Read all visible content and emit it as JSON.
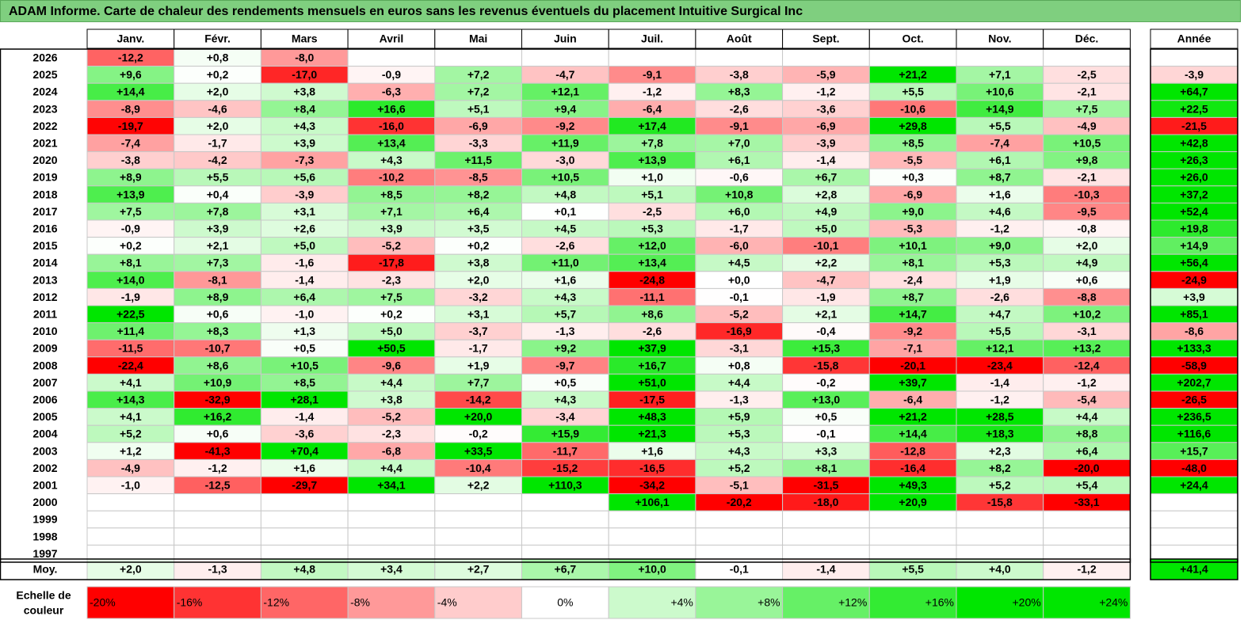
{
  "title": "ADAM Informe. Carte de chaleur des rendements mensuels en euros sans les revenus éventuels du placement Intuitive Surgical Inc",
  "chart_data": {
    "type": "heatmap",
    "months": [
      "Janv.",
      "Févr.",
      "Mars",
      "Avril",
      "Mai",
      "Juin",
      "Juil.",
      "Août",
      "Sept.",
      "Oct.",
      "Nov.",
      "Déc."
    ],
    "year_header": "Année",
    "rows": [
      {
        "year": "2026",
        "values": [
          "-12,2",
          "+0,8",
          "-8,0",
          "",
          "",
          "",
          "",
          "",
          "",
          "",
          "",
          ""
        ],
        "annual": ""
      },
      {
        "year": "2025",
        "values": [
          "+9,6",
          "+0,2",
          "-17,0",
          "-0,9",
          "+7,2",
          "-4,7",
          "-9,1",
          "-3,8",
          "-5,9",
          "+21,2",
          "+7,1",
          "-2,5"
        ],
        "annual": "-3,9"
      },
      {
        "year": "2024",
        "values": [
          "+14,4",
          "+2,0",
          "+3,8",
          "-6,3",
          "+7,2",
          "+12,1",
          "-1,2",
          "+8,3",
          "-1,2",
          "+5,5",
          "+10,6",
          "-2,1"
        ],
        "annual": "+64,7"
      },
      {
        "year": "2023",
        "values": [
          "-8,9",
          "-4,6",
          "+8,4",
          "+16,6",
          "+5,1",
          "+9,4",
          "-6,4",
          "-2,6",
          "-3,6",
          "-10,6",
          "+14,9",
          "+7,5"
        ],
        "annual": "+22,5"
      },
      {
        "year": "2022",
        "values": [
          "-19,7",
          "+2,0",
          "+4,3",
          "-16,0",
          "-6,9",
          "-9,2",
          "+17,4",
          "-9,1",
          "-6,9",
          "+29,8",
          "+5,5",
          "-4,9"
        ],
        "annual": "-21,5"
      },
      {
        "year": "2021",
        "values": [
          "-7,4",
          "-1,7",
          "+3,9",
          "+13,4",
          "-3,3",
          "+11,9",
          "+7,8",
          "+7,0",
          "-3,9",
          "+8,5",
          "-7,4",
          "+10,5"
        ],
        "annual": "+42,8"
      },
      {
        "year": "2020",
        "values": [
          "-3,8",
          "-4,2",
          "-7,3",
          "+4,3",
          "+11,5",
          "-3,0",
          "+13,9",
          "+6,1",
          "-1,4",
          "-5,5",
          "+6,1",
          "+9,8"
        ],
        "annual": "+26,3"
      },
      {
        "year": "2019",
        "values": [
          "+8,9",
          "+5,5",
          "+5,6",
          "-10,2",
          "-8,5",
          "+10,5",
          "+1,0",
          "-0,6",
          "+6,7",
          "+0,3",
          "+8,7",
          "-2,1"
        ],
        "annual": "+26,0"
      },
      {
        "year": "2018",
        "values": [
          "+13,9",
          "+0,4",
          "-3,9",
          "+8,5",
          "+8,2",
          "+4,8",
          "+5,1",
          "+10,8",
          "+2,8",
          "-6,9",
          "+1,6",
          "-10,3"
        ],
        "annual": "+37,2"
      },
      {
        "year": "2017",
        "values": [
          "+7,5",
          "+7,8",
          "+3,1",
          "+7,1",
          "+6,4",
          "+0,1",
          "-2,5",
          "+6,0",
          "+4,9",
          "+9,0",
          "+4,6",
          "-9,5"
        ],
        "annual": "+52,4"
      },
      {
        "year": "2016",
        "values": [
          "-0,9",
          "+3,9",
          "+2,6",
          "+3,9",
          "+3,5",
          "+4,5",
          "+5,3",
          "-1,7",
          "+5,0",
          "-5,3",
          "-1,2",
          "-0,8"
        ],
        "annual": "+19,8"
      },
      {
        "year": "2015",
        "values": [
          "+0,2",
          "+2,1",
          "+5,0",
          "-5,2",
          "+0,2",
          "-2,6",
          "+12,0",
          "-6,0",
          "-10,1",
          "+10,1",
          "+9,0",
          "+2,0"
        ],
        "annual": "+14,9"
      },
      {
        "year": "2014",
        "values": [
          "+8,1",
          "+7,3",
          "-1,6",
          "-17,8",
          "+3,8",
          "+11,0",
          "+13,4",
          "+4,5",
          "+2,2",
          "+8,1",
          "+5,3",
          "+4,9"
        ],
        "annual": "+56,4"
      },
      {
        "year": "2013",
        "values": [
          "+14,0",
          "-8,1",
          "-1,4",
          "-2,3",
          "+2,0",
          "+1,6",
          "-24,8",
          "+0,0",
          "-4,7",
          "-2,4",
          "+1,9",
          "+0,6"
        ],
        "annual": "-24,9"
      },
      {
        "year": "2012",
        "values": [
          "-1,9",
          "+8,9",
          "+6,4",
          "+7,5",
          "-3,2",
          "+4,3",
          "-11,1",
          "-0,1",
          "-1,9",
          "+8,7",
          "-2,6",
          "-8,8"
        ],
        "annual": "+3,9"
      },
      {
        "year": "2011",
        "values": [
          "+22,5",
          "+0,6",
          "-1,0",
          "+0,2",
          "+3,1",
          "+5,7",
          "+8,6",
          "-5,2",
          "+2,1",
          "+14,7",
          "+4,7",
          "+10,2"
        ],
        "annual": "+85,1"
      },
      {
        "year": "2010",
        "values": [
          "+11,4",
          "+8,3",
          "+1,3",
          "+5,0",
          "-3,7",
          "-1,3",
          "-2,6",
          "-16,9",
          "-0,4",
          "-9,2",
          "+5,5",
          "-3,1"
        ],
        "annual": "-8,6"
      },
      {
        "year": "2009",
        "values": [
          "-11,5",
          "-10,7",
          "+0,5",
          "+50,5",
          "-1,7",
          "+9,2",
          "+37,9",
          "-3,1",
          "+15,3",
          "-7,1",
          "+12,1",
          "+13,2"
        ],
        "annual": "+133,3"
      },
      {
        "year": "2008",
        "values": [
          "-22,4",
          "+8,6",
          "+10,5",
          "-9,6",
          "+1,9",
          "-9,7",
          "+16,7",
          "+0,8",
          "-15,8",
          "-20,1",
          "-23,4",
          "-12,4"
        ],
        "annual": "-58,9"
      },
      {
        "year": "2007",
        "values": [
          "+4,1",
          "+10,9",
          "+8,5",
          "+4,4",
          "+7,7",
          "+0,5",
          "+51,0",
          "+4,4",
          "-0,2",
          "+39,7",
          "-1,4",
          "-1,2"
        ],
        "annual": "+202,7"
      },
      {
        "year": "2006",
        "values": [
          "+14,3",
          "-32,9",
          "+28,1",
          "+3,8",
          "-14,2",
          "+4,3",
          "-17,5",
          "-1,3",
          "+13,0",
          "-6,4",
          "-1,2",
          "-5,4"
        ],
        "annual": "-26,5"
      },
      {
        "year": "2005",
        "values": [
          "+4,1",
          "+16,2",
          "-1,4",
          "-5,2",
          "+20,0",
          "-3,4",
          "+48,3",
          "+5,9",
          "+0,5",
          "+21,2",
          "+28,5",
          "+4,4"
        ],
        "annual": "+236,5"
      },
      {
        "year": "2004",
        "values": [
          "+5,2",
          "+0,6",
          "-3,6",
          "-2,3",
          "-0,2",
          "+15,9",
          "+21,3",
          "+5,3",
          "-0,1",
          "+14,4",
          "+18,3",
          "+8,8"
        ],
        "annual": "+116,6"
      },
      {
        "year": "2003",
        "values": [
          "+1,2",
          "-41,3",
          "+70,4",
          "-6,8",
          "+33,5",
          "-11,7",
          "+1,6",
          "+4,3",
          "+3,3",
          "-12,8",
          "+2,3",
          "+6,4"
        ],
        "annual": "+15,7"
      },
      {
        "year": "2002",
        "values": [
          "-4,9",
          "-1,2",
          "+1,6",
          "+4,4",
          "-10,4",
          "-15,2",
          "-16,5",
          "+5,2",
          "+8,1",
          "-16,4",
          "+8,2",
          "-20,0"
        ],
        "annual": "-48,0"
      },
      {
        "year": "2001",
        "values": [
          "-1,0",
          "-12,5",
          "-29,7",
          "+34,1",
          "+2,2",
          "+110,3",
          "-34,2",
          "-5,1",
          "-31,5",
          "+49,3",
          "+5,2",
          "+5,4"
        ],
        "annual": "+24,4"
      },
      {
        "year": "2000",
        "values": [
          "",
          "",
          "",
          "",
          "",
          "",
          "+106,1",
          "-20,2",
          "-18,0",
          "+20,9",
          "-15,8",
          "-33,1"
        ],
        "annual": ""
      },
      {
        "year": "1999",
        "values": [
          "",
          "",
          "",
          "",
          "",
          "",
          "",
          "",
          "",
          "",
          "",
          ""
        ],
        "annual": ""
      },
      {
        "year": "1998",
        "values": [
          "",
          "",
          "",
          "",
          "",
          "",
          "",
          "",
          "",
          "",
          "",
          ""
        ],
        "annual": ""
      },
      {
        "year": "1997",
        "values": [
          "",
          "",
          "",
          "",
          "",
          "",
          "",
          "",
          "",
          "",
          "",
          ""
        ],
        "annual": ""
      }
    ],
    "average": {
      "label": "Moy.",
      "values": [
        "+2,0",
        "-1,3",
        "+4,8",
        "+3,4",
        "+2,7",
        "+6,7",
        "+10,0",
        "-0,1",
        "-1,4",
        "+5,5",
        "+4,0",
        "-1,2"
      ],
      "annual": "+41,4"
    },
    "scale": {
      "label_line1": "Echelle de",
      "label_line2": "couleur",
      "stops": [
        "-20%",
        "-16%",
        "-12%",
        "-8%",
        "-4%",
        "0%",
        "+4%",
        "+8%",
        "+12%",
        "+16%",
        "+20%",
        "+24%"
      ]
    },
    "colors": {
      "negative_max": "#ff0000",
      "positive_max": "#00e600",
      "neutral": "#ffffff",
      "title_bar": "#7fcf7f"
    }
  }
}
